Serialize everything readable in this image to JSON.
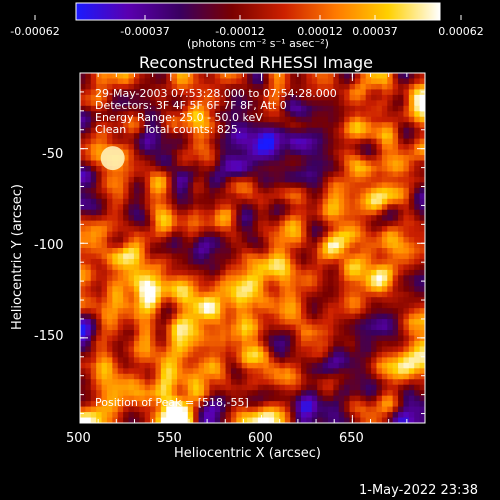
{
  "colorbar": {
    "tick_labels": [
      "-0.00062",
      "-0.00037",
      "-0.00012",
      "0.00012",
      "0.00037",
      "0.00062"
    ],
    "units_label": "(photons cm⁻² s⁻¹ asec⁻²)",
    "colors": [
      "#1a1aff",
      "#5a00b0",
      "#3a0060",
      "#7a0000",
      "#cc2000",
      "#ff7a00",
      "#ffd000",
      "#ffffff"
    ]
  },
  "annotations": {
    "time_range": "29-May-2003 07:53:28.000 to 07:54:28.000",
    "detectors": "Detectors: 3F 4F 5F 6F 7F 8F, Att 0",
    "energy_range": "Energy Range: 25.0 - 50.0 keV",
    "clean_counts": "Clean     Total counts: 825.",
    "peak_position": "Position of Peak = [518,-55]"
  },
  "footer": {
    "timestamp": "1-May-2022 23:38"
  },
  "chart_data": {
    "type": "heatmap",
    "title": "Reconstructed RHESSI Image",
    "xlabel": "Heliocentric X (arcsec)",
    "ylabel": "Heliocentric Y (arcsec)",
    "xlim": [
      500,
      690
    ],
    "ylim": [
      -195,
      -10
    ],
    "xticks": [
      500,
      550,
      600,
      650
    ],
    "yticks": [
      -50,
      -100,
      -150
    ],
    "color_range": [
      -0.00062,
      0.00062
    ],
    "peak": [
      518,
      -55
    ],
    "colormap": "blue-purple-red-yellow-white"
  }
}
